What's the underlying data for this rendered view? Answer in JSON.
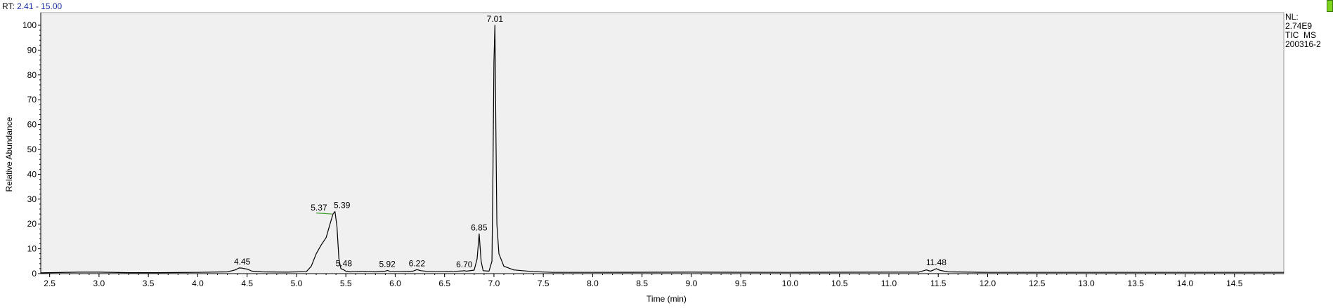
{
  "header": {
    "rt_prefix": "RT:",
    "rt_range": "2.41 - 15.00"
  },
  "info": {
    "nl_label": "NL:",
    "nl_value": "2.74E9",
    "scan_filter": "TIC  MS",
    "sample": "200316-2"
  },
  "colors": {
    "plot_bg": "#f0f0f0",
    "trace": "#000000",
    "baseline_marker": "#3a9a2a",
    "accent_text": "#1c2fa8",
    "status_indicator": "#7ed321"
  },
  "chart_data": {
    "type": "line",
    "title": "",
    "xlabel": "Time (min)",
    "ylabel": "Relative Abundance",
    "xlim": [
      2.41,
      15.0
    ],
    "ylim": [
      0,
      100
    ],
    "xticks": [
      2.5,
      3.0,
      3.5,
      4.0,
      4.5,
      5.0,
      5.5,
      6.0,
      6.5,
      7.0,
      7.5,
      8.0,
      8.5,
      9.0,
      9.5,
      10.0,
      10.5,
      11.0,
      11.5,
      12.0,
      12.5,
      13.0,
      13.5,
      14.0,
      14.5
    ],
    "xtick_labels": [
      "2.5",
      "3.0",
      "3.5",
      "4.0",
      "4.5",
      "5.0",
      "5.5",
      "6.0",
      "6.5",
      "7.0",
      "7.5",
      "8.0",
      "8.5",
      "9.0",
      "9.5",
      "10.0",
      "10.5",
      "11.0",
      "11.5",
      "12.0",
      "12.5",
      "13.0",
      "13.5",
      "14.0",
      "14.5"
    ],
    "yticks": [
      0,
      10,
      20,
      30,
      40,
      50,
      60,
      70,
      80,
      90,
      100
    ],
    "ytick_labels": [
      "0",
      "10",
      "20",
      "30",
      "40",
      "50",
      "60",
      "70",
      "80",
      "90",
      "100"
    ],
    "grid": false,
    "series": [
      {
        "x": [
          2.41,
          2.5,
          2.8,
          3.0,
          3.3,
          3.6,
          4.0,
          4.3,
          4.38,
          4.42,
          4.45,
          4.5,
          4.55,
          4.65,
          4.9,
          5.1,
          5.15,
          5.2,
          5.25,
          5.3,
          5.34,
          5.37,
          5.39,
          5.41,
          5.43,
          5.45,
          5.48,
          5.5,
          5.55,
          5.6,
          5.7,
          5.8,
          5.9,
          5.92,
          5.95,
          6.05,
          6.18,
          6.22,
          6.26,
          6.35,
          6.5,
          6.6,
          6.68,
          6.7,
          6.72,
          6.8,
          6.83,
          6.85,
          6.87,
          6.89,
          6.95,
          6.98,
          6.99,
          7.0,
          7.01,
          7.02,
          7.03,
          7.05,
          7.1,
          7.2,
          7.4,
          7.6,
          8.0,
          9.0,
          10.0,
          11.0,
          11.3,
          11.38,
          11.42,
          11.45,
          11.48,
          11.52,
          11.6,
          12.0,
          13.0,
          14.0,
          15.0
        ],
        "y": [
          0.3,
          0.4,
          0.6,
          0.6,
          0.4,
          0.4,
          0.5,
          0.7,
          1.5,
          2.3,
          2.2,
          1.8,
          1.0,
          0.7,
          0.6,
          0.8,
          3.0,
          8.0,
          11.5,
          14.5,
          20.0,
          24.0,
          25.0,
          19.0,
          6.0,
          2.0,
          1.5,
          1.0,
          0.7,
          0.8,
          0.9,
          0.7,
          1.0,
          1.3,
          0.9,
          0.8,
          1.0,
          1.6,
          1.2,
          0.8,
          0.8,
          0.9,
          1.1,
          1.2,
          1.0,
          1.4,
          6.0,
          16.0,
          5.0,
          1.2,
          1.0,
          5.0,
          40.0,
          85.0,
          100.0,
          58.0,
          20.0,
          8.0,
          3.0,
          1.5,
          0.8,
          0.5,
          0.5,
          0.6,
          0.5,
          0.6,
          0.6,
          1.5,
          1.0,
          1.4,
          2.0,
          1.3,
          0.7,
          0.5,
          0.5,
          0.5,
          0.5
        ]
      }
    ],
    "peak_labels": [
      {
        "x": 4.45,
        "y": 2.3,
        "label": "4.45"
      },
      {
        "x": 5.37,
        "y": 24.0,
        "label": "5.37"
      },
      {
        "x": 5.39,
        "y": 25.0,
        "label": "5.39"
      },
      {
        "x": 5.48,
        "y": 1.5,
        "label": "5.48"
      },
      {
        "x": 5.92,
        "y": 1.3,
        "label": "5.92"
      },
      {
        "x": 6.22,
        "y": 1.6,
        "label": "6.22"
      },
      {
        "x": 6.7,
        "y": 1.2,
        "label": "6.70"
      },
      {
        "x": 6.85,
        "y": 16.0,
        "label": "6.85"
      },
      {
        "x": 7.01,
        "y": 100.0,
        "label": "7.01"
      },
      {
        "x": 11.48,
        "y": 2.0,
        "label": "11.48"
      }
    ]
  }
}
